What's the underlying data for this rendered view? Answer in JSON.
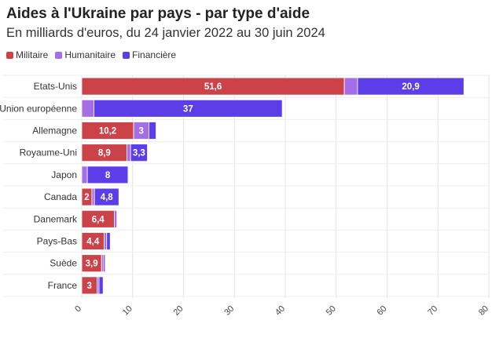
{
  "title": "Aides à l'Ukraine par pays - par type d'aide",
  "subtitle": "En milliards d'euros, du 24 janvier 2022 au 30 juin 2024",
  "legend": [
    {
      "label": "Militaire",
      "color": "#cc4249"
    },
    {
      "label": "Humanitaire",
      "color": "#a66ee6"
    },
    {
      "label": "Financière",
      "color": "#5b3ee8"
    }
  ],
  "chart_data": {
    "type": "bar",
    "orientation": "horizontal",
    "stacked": true,
    "title": "Aides à l'Ukraine par pays - par type d'aide",
    "subtitle": "En milliards d'euros, du 24 janvier 2022 au 30 juin 2024",
    "categories": [
      "Etats-Unis",
      "Union européenne",
      "Allemagne",
      "Royaume-Uni",
      "Japon",
      "Canada",
      "Danemark",
      "Pays-Bas",
      "Suède",
      "France"
    ],
    "series": [
      {
        "name": "Militaire",
        "color": "#cc4249",
        "values": [
          51.6,
          0,
          10.2,
          8.9,
          0,
          2,
          6.4,
          4.4,
          3.9,
          3
        ],
        "labels": [
          "51,6",
          "",
          "10,2",
          "8,9",
          "",
          "2",
          "6,4",
          "4,4",
          "3,9",
          "3"
        ]
      },
      {
        "name": "Humanitaire",
        "color": "#a66ee6",
        "values": [
          2.6,
          2.4,
          3,
          0.7,
          1.1,
          0.5,
          0.5,
          0.5,
          0.4,
          0.4
        ],
        "labels": [
          "",
          "",
          "3",
          "",
          "",
          "",
          "",
          "",
          "",
          ""
        ]
      },
      {
        "name": "Financière",
        "color": "#5b3ee8",
        "values": [
          20.9,
          37,
          1.4,
          3.3,
          8,
          4.8,
          0,
          0.7,
          0.3,
          0.8
        ],
        "labels": [
          "20,9",
          "37",
          "",
          "3,3",
          "8",
          "4,8",
          "",
          "",
          "",
          ""
        ]
      }
    ],
    "xlim": [
      0,
      80
    ],
    "xticks": [
      "0",
      "10",
      "20",
      "30",
      "40",
      "50",
      "60",
      "70",
      "80"
    ],
    "grid": true,
    "legend_position": "top-left"
  }
}
